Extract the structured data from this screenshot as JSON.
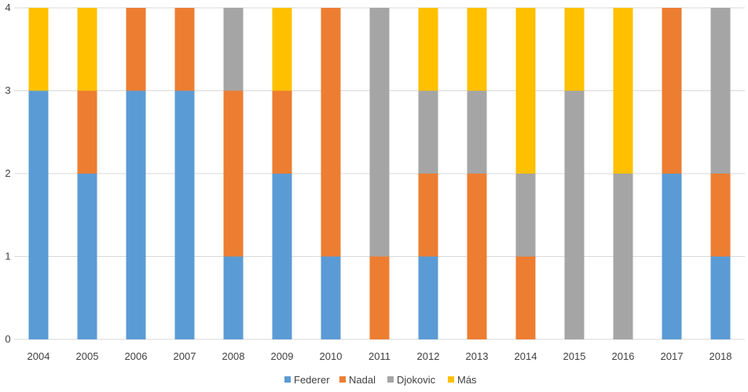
{
  "chart_data": {
    "type": "bar",
    "stacked": true,
    "categories": [
      "2004",
      "2005",
      "2006",
      "2007",
      "2008",
      "2009",
      "2010",
      "2011",
      "2012",
      "2013",
      "2014",
      "2015",
      "2016",
      "2017",
      "2018"
    ],
    "series": [
      {
        "name": "Federer",
        "color": "#5B9BD5",
        "values": [
          3,
          2,
          3,
          3,
          1,
          2,
          1,
          0,
          1,
          0,
          0,
          0,
          0,
          2,
          1
        ]
      },
      {
        "name": "Nadal",
        "color": "#ED7D31",
        "values": [
          0,
          1,
          1,
          1,
          2,
          1,
          3,
          1,
          1,
          2,
          1,
          0,
          0,
          2,
          1
        ]
      },
      {
        "name": "Djokovic",
        "color": "#A5A5A5",
        "values": [
          0,
          0,
          0,
          0,
          1,
          0,
          0,
          3,
          1,
          1,
          1,
          3,
          2,
          0,
          2
        ]
      },
      {
        "name": "Más",
        "color": "#FFC000",
        "values": [
          1,
          1,
          0,
          0,
          0,
          1,
          0,
          0,
          1,
          1,
          2,
          1,
          2,
          0,
          0
        ]
      }
    ],
    "yticks": [
      "0",
      "1",
      "2",
      "3",
      "4"
    ],
    "ylim": [
      0,
      4
    ],
    "grid": true,
    "legend": "bottom",
    "title": "",
    "xlabel": "",
    "ylabel": ""
  }
}
